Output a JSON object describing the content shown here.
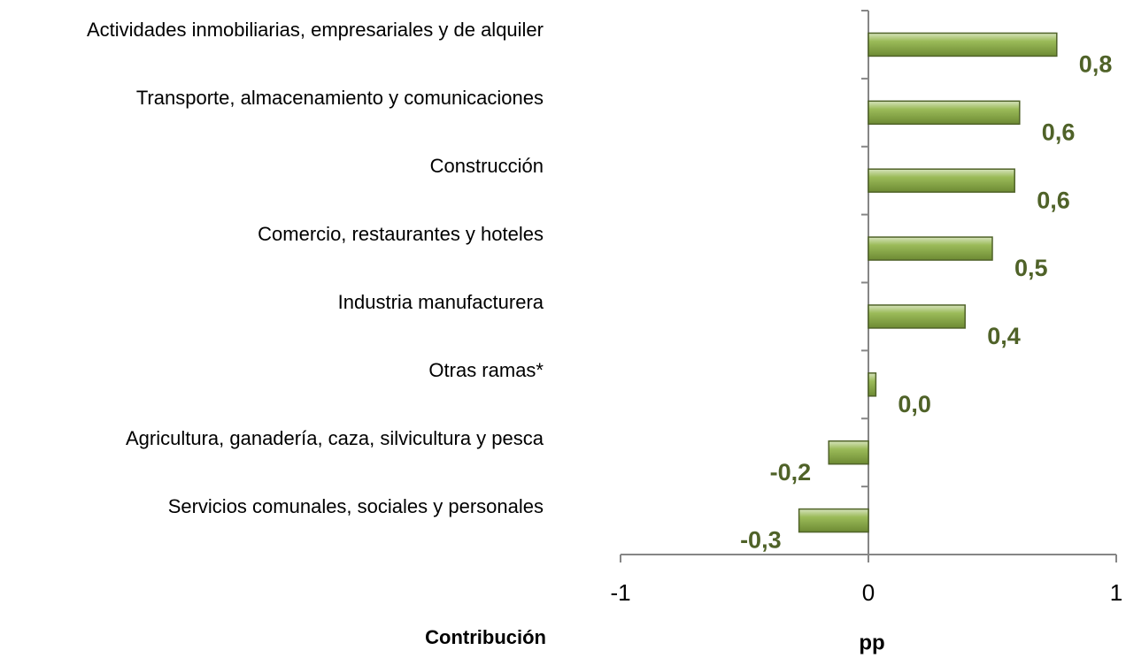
{
  "chart_data": {
    "type": "hbar",
    "categories": [
      "Actividades inmobiliarias, empresariales y de alquiler",
      "Transporte, almacenamiento y comunicaciones",
      "Construcción",
      "Comercio, restaurantes y hoteles",
      "Industria manufacturera",
      "Otras ramas*",
      "Agricultura, ganadería, caza, silvicultura y pesca",
      "Servicios comunales, sociales y personales"
    ],
    "values": [
      0.76,
      0.61,
      0.59,
      0.5,
      0.39,
      0.03,
      -0.16,
      -0.28
    ],
    "value_labels": [
      "0,8",
      "0,6",
      "0,6",
      "0,5",
      "0,4",
      "0,0",
      "-0,2",
      "-0,3"
    ],
    "color": "#9bbb59",
    "label_color": "#4f6228",
    "xlim": [
      -1,
      1
    ],
    "xticks": [
      -1,
      0,
      1
    ],
    "xlabel": "pp",
    "ylabel": "Contribución"
  }
}
